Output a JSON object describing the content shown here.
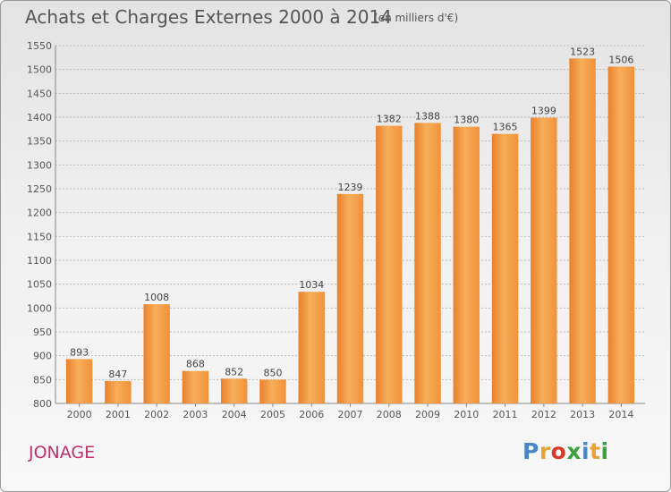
{
  "title": "Achats et Charges Externes 2000 à 2014",
  "unit_note": "(en milliers d'€)",
  "city": "JONAGE",
  "logo": {
    "letters": [
      "P",
      "r",
      "o",
      "x",
      "i",
      "t",
      "i"
    ],
    "colors": [
      "#4a86c6",
      "#e8a23a",
      "#d9382b",
      "#3fa03f",
      "#4a86c6",
      "#e8a23a",
      "#3fa03f"
    ]
  },
  "colors": {
    "bar": "#f0923a",
    "bar_light": "#f8ae5a",
    "bar_dark": "#e8802c",
    "text": "#555555",
    "grid": "#bbbbbb",
    "city": "#c2306a"
  },
  "chart_data": {
    "type": "bar",
    "title": "Achats et Charges Externes 2000 à 2014",
    "subtitle": "(en milliers d'€)",
    "categories": [
      "2000",
      "2001",
      "2002",
      "2003",
      "2004",
      "2005",
      "2006",
      "2007",
      "2008",
      "2009",
      "2010",
      "2011",
      "2012",
      "2013",
      "2014"
    ],
    "values": [
      893,
      847,
      1008,
      868,
      852,
      850,
      1034,
      1239,
      1382,
      1388,
      1380,
      1365,
      1399,
      1523,
      1506
    ],
    "ylim": [
      800,
      1550
    ],
    "yticks": [
      800,
      850,
      900,
      950,
      1000,
      1050,
      1100,
      1150,
      1200,
      1250,
      1300,
      1350,
      1400,
      1450,
      1500,
      1550
    ],
    "grid": true,
    "data_labels": true
  }
}
